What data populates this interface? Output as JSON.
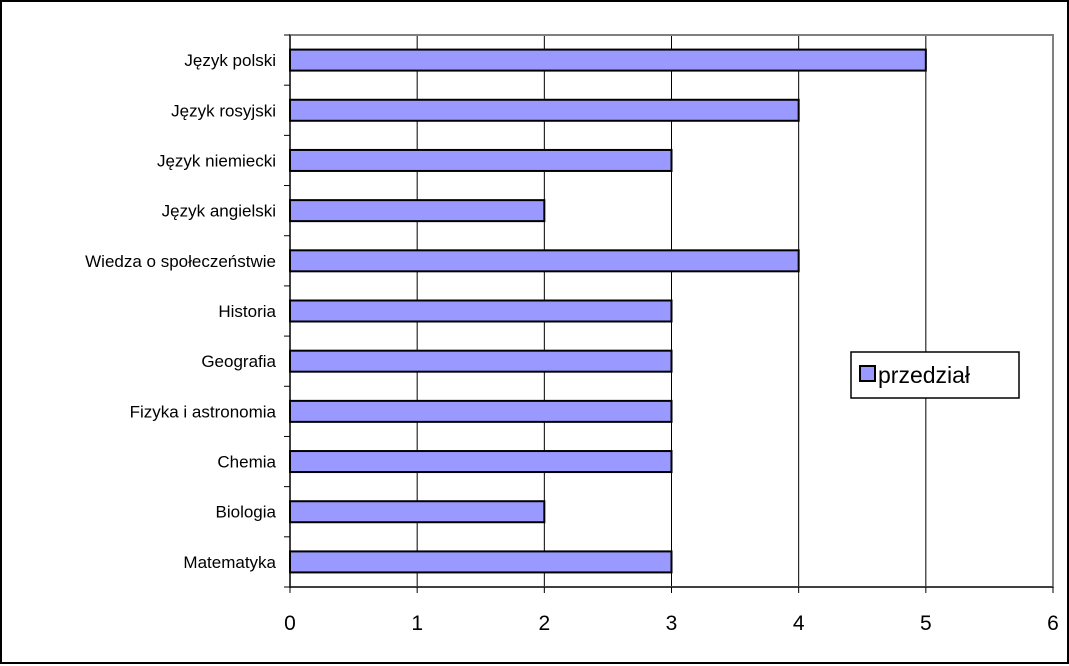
{
  "chart_data": {
    "type": "bar",
    "orientation": "horizontal",
    "title": "",
    "xlabel": "",
    "ylabel": "",
    "categories": [
      "Język polski",
      "Język rosyjski",
      "Język niemiecki",
      "Język angielski",
      "Wiedza o społeczeństwie",
      "Historia",
      "Geografia",
      "Fizyka i astronomia",
      "Chemia",
      "Biologia",
      "Matematyka"
    ],
    "series": [
      {
        "name": "przedział",
        "values": [
          5,
          4,
          3,
          2,
          4,
          3,
          3,
          3,
          3,
          2,
          3
        ]
      }
    ],
    "xlim": [
      0,
      6
    ],
    "x_ticks": [
      "0",
      "1",
      "2",
      "3",
      "4",
      "5",
      "6"
    ],
    "grid": "vertical major gridlines",
    "legend": {
      "position": "right",
      "entries": [
        "przedział"
      ]
    },
    "colors": {
      "bar_fill": "#9999ff",
      "bar_stroke": "#000000",
      "grid": "#000000",
      "plot_border": "#808080"
    }
  }
}
